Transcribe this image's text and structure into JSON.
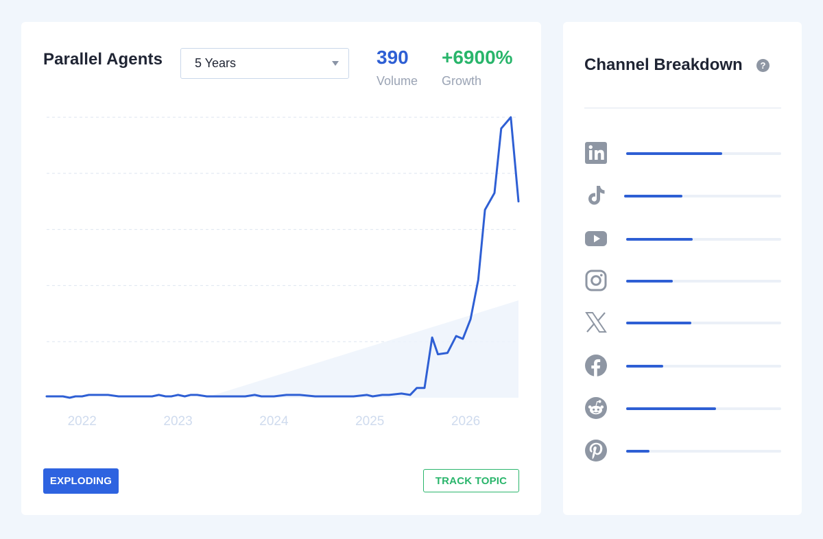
{
  "topic": {
    "title": "Parallel Agents",
    "range_selected": "5 Years"
  },
  "metrics": {
    "volume_value": "390",
    "volume_label": "Volume",
    "growth_value": "+6900%",
    "growth_label": "Growth"
  },
  "colors": {
    "accent": "#2e5fd4",
    "growth": "#29b56b",
    "badge": "#2e63e0"
  },
  "chart_data": {
    "type": "line",
    "title": "",
    "xlabel": "",
    "ylabel": "",
    "x_tick_labels": [
      "2022",
      "2023",
      "2024",
      "2025",
      "2026"
    ],
    "x_range": [
      2021.63,
      2026.55
    ],
    "y_range": [
      0,
      100
    ],
    "grid": "horizontal dashed",
    "series": [
      {
        "x": [
          2021.63,
          2021.8,
          2021.87,
          2021.93,
          2022.0,
          2022.07,
          2022.13,
          2022.27,
          2022.38,
          2022.5,
          2022.63,
          2022.73,
          2022.8,
          2022.87,
          2022.93,
          2023.0,
          2023.07,
          2023.13,
          2023.2,
          2023.3,
          2023.4,
          2023.5,
          2023.6,
          2023.7,
          2023.8,
          2023.87,
          2023.93,
          2024.0,
          2024.13,
          2024.27,
          2024.43,
          2024.57,
          2024.73,
          2024.83,
          2024.97,
          2025.03,
          2025.13,
          2025.2,
          2025.33,
          2025.42,
          2025.49,
          2025.57,
          2025.65,
          2025.71,
          2025.81,
          2025.9,
          2025.97,
          2026.05,
          2026.13,
          2026.2,
          2026.3,
          2026.37,
          2026.47,
          2026.55
        ],
        "y": [
          0.5,
          0.5,
          0,
          0.5,
          0.5,
          1,
          1,
          1,
          0.5,
          0.5,
          0.5,
          0.5,
          1,
          0.5,
          0.5,
          1,
          0.5,
          1,
          1,
          0.5,
          0.5,
          0.5,
          0.5,
          0.5,
          1,
          0.5,
          0.5,
          0.5,
          1,
          1,
          0.5,
          0.5,
          0.5,
          0.5,
          1,
          0.5,
          1,
          1,
          1.5,
          1,
          3.5,
          3.5,
          21.5,
          15.5,
          16,
          22,
          21,
          28,
          42,
          67,
          73,
          96,
          100,
          70
        ]
      }
    ]
  },
  "status_badge": "EXPLODING",
  "track_button": "TRACK TOPIC",
  "sidebar": {
    "title": "Channel Breakdown",
    "help_symbol": "?",
    "channels": [
      {
        "icon": "linkedin-icon",
        "share": 0.62
      },
      {
        "icon": "tiktok-icon",
        "share": 0.37
      },
      {
        "icon": "youtube-icon",
        "share": 0.43
      },
      {
        "icon": "instagram-icon",
        "share": 0.3
      },
      {
        "icon": "x-icon",
        "share": 0.42
      },
      {
        "icon": "facebook-icon",
        "share": 0.24
      },
      {
        "icon": "reddit-icon",
        "share": 0.58
      },
      {
        "icon": "pinterest-icon",
        "share": 0.15
      }
    ]
  }
}
